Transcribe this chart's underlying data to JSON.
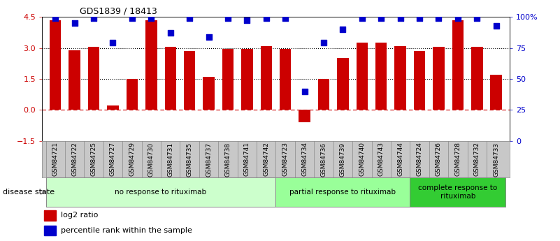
{
  "title": "GDS1839 / 18413",
  "samples": [
    "GSM84721",
    "GSM84722",
    "GSM84725",
    "GSM84727",
    "GSM84729",
    "GSM84730",
    "GSM84731",
    "GSM84735",
    "GSM84737",
    "GSM84738",
    "GSM84741",
    "GSM84742",
    "GSM84723",
    "GSM84734",
    "GSM84736",
    "GSM84739",
    "GSM84740",
    "GSM84743",
    "GSM84744",
    "GSM84724",
    "GSM84726",
    "GSM84728",
    "GSM84732",
    "GSM84733"
  ],
  "log2_ratio": [
    4.35,
    2.9,
    3.05,
    0.2,
    1.5,
    4.35,
    3.05,
    2.85,
    1.6,
    2.95,
    2.95,
    3.1,
    2.95,
    -0.6,
    1.5,
    2.5,
    3.25,
    3.25,
    3.1,
    2.85,
    3.05,
    4.35,
    3.05,
    1.7
  ],
  "percentile": [
    99,
    95,
    99,
    79,
    99,
    99,
    87,
    99,
    84,
    99,
    97,
    99,
    99,
    40,
    79,
    90,
    99,
    99,
    99,
    99,
    99,
    99,
    99,
    93
  ],
  "groups": [
    {
      "label": "no response to rituximab",
      "start": 0,
      "end": 12,
      "color": "#ccffcc"
    },
    {
      "label": "partial response to rituximab",
      "start": 12,
      "end": 19,
      "color": "#99ff99"
    },
    {
      "label": "complete response to\nrituximab",
      "start": 19,
      "end": 24,
      "color": "#33cc33"
    }
  ],
  "ylim_left": [
    -1.5,
    4.5
  ],
  "ylim_right": [
    0,
    100
  ],
  "yticks_left": [
    -1.5,
    0,
    1.5,
    3.0,
    4.5
  ],
  "yticks_right": [
    0,
    25,
    50,
    75,
    100
  ],
  "bar_color": "#cc0000",
  "dot_color": "#0000cc",
  "zero_line_color": "#cc0000",
  "grid_color": "#000000",
  "dot_size": 28,
  "bar_width": 0.6,
  "right_axis_label_100": "100%"
}
